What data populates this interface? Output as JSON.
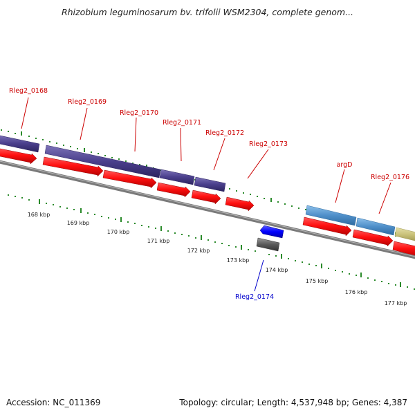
{
  "title": "Rhizobium leguminosarum bv. trifolii WSM2304, complete genom...",
  "footer": {
    "accession": "Accession: NC_011369",
    "summary": "Topology: circular; Length: 4,537,948 bp; Genes: 4,387"
  },
  "scale_labels": [
    "168 kbp",
    "169 kbp",
    "170 kbp",
    "171 kbp",
    "172 kbp",
    "173 kbp",
    "174 kbp",
    "175 kbp",
    "176 kbp",
    "177 kbp"
  ],
  "genes": [
    {
      "label": "Rleg2_0168",
      "color": "#cc0000",
      "strand": "forward"
    },
    {
      "label": "Rleg2_0169",
      "color": "#cc0000",
      "strand": "forward"
    },
    {
      "label": "Rleg2_0170",
      "color": "#cc0000",
      "strand": "forward"
    },
    {
      "label": "Rleg2_0171",
      "color": "#cc0000",
      "strand": "forward"
    },
    {
      "label": "Rleg2_0172",
      "color": "#cc0000",
      "strand": "forward"
    },
    {
      "label": "Rleg2_0173",
      "color": "#cc0000",
      "strand": "forward"
    },
    {
      "label": "argD",
      "color": "#cc0000",
      "strand": "forward"
    },
    {
      "label": "Rleg2_0176",
      "color": "#cc0000",
      "strand": "forward"
    },
    {
      "label": "Rleg2_0174",
      "color": "#0000cc",
      "strand": "reverse"
    }
  ],
  "colors": {
    "cds": "#ff0000",
    "purple_feature": "#4a3f8c",
    "blue_feature": "#4f8fc9",
    "olive_feature": "#c8c078",
    "reverse_gene": "#0000ff",
    "reverse_feature": "#5a5a5a",
    "backbone": "#7a7a7a",
    "ticks": "#2a8a2a"
  }
}
